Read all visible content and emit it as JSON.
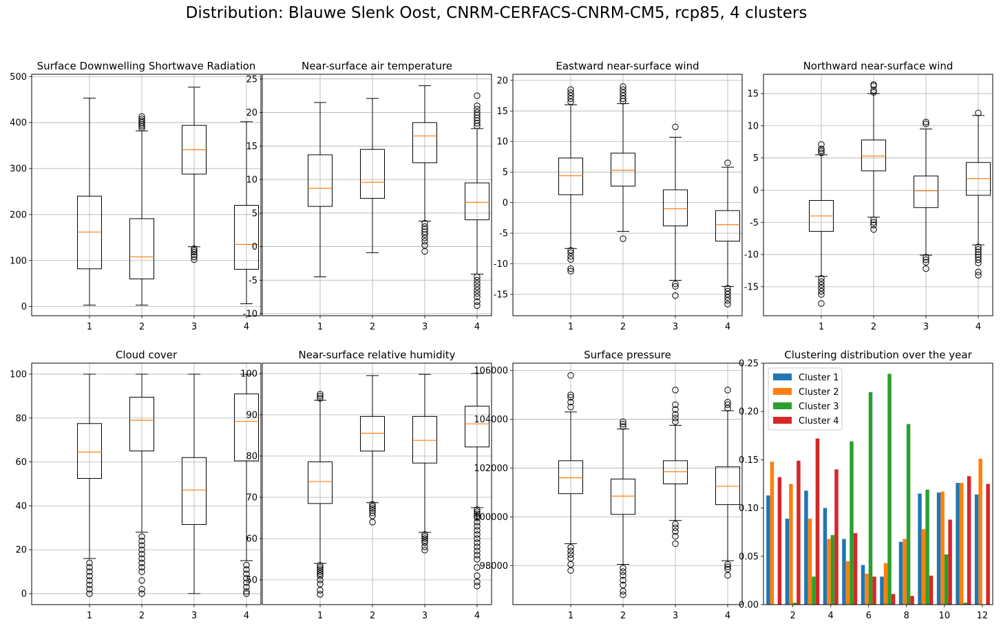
{
  "suptitle": "Distribution: Blauwe Slenk Oost, CNRM-CERFACS-CNRM-CM5, rcp85, 4 clusters",
  "colors": {
    "median": "#ff7f0e",
    "grid": "#b0b0b0",
    "cluster1": "#1f77b4",
    "cluster2": "#ff7f0e",
    "cluster3": "#2ca02c",
    "cluster4": "#d62728"
  },
  "chart_data": [
    {
      "type": "box",
      "title": "Surface Downwelling Shortwave Radiation",
      "categories": [
        "1",
        "2",
        "3",
        "4"
      ],
      "ylim": [
        -20,
        505
      ],
      "yticks": [
        0,
        100,
        200,
        300,
        400,
        500
      ],
      "grid": true,
      "boxes": [
        {
          "whislo": 3,
          "q1": 82,
          "med": 162,
          "q3": 240,
          "whishi": 453,
          "fliers": []
        },
        {
          "whislo": 3,
          "q1": 60,
          "med": 108,
          "q3": 191,
          "whishi": 382,
          "fliers": [
            388,
            392,
            396,
            400,
            404,
            408,
            413
          ]
        },
        {
          "whislo": 130,
          "q1": 288,
          "med": 341,
          "q3": 394,
          "whishi": 477,
          "fliers": [
            102,
            108,
            113,
            118,
            122,
            126
          ]
        },
        {
          "whislo": 6,
          "q1": 81,
          "med": 135,
          "q3": 220,
          "whishi": 402,
          "fliers": []
        }
      ]
    },
    {
      "type": "box",
      "title": "Near-surface air temperature",
      "categories": [
        "1",
        "2",
        "3",
        "4"
      ],
      "ylim": [
        -10.3,
        25.7
      ],
      "yticks": [
        -10,
        -5,
        0,
        5,
        10,
        15,
        20,
        25
      ],
      "grid": true,
      "boxes": [
        {
          "whislo": -4.5,
          "q1": 6.0,
          "med": 8.7,
          "q3": 13.7,
          "whishi": 21.5,
          "fliers": []
        },
        {
          "whislo": -0.9,
          "q1": 7.2,
          "med": 9.6,
          "q3": 14.5,
          "whishi": 22.1,
          "fliers": []
        },
        {
          "whislo": 3.8,
          "q1": 12.5,
          "med": 16.5,
          "q3": 18.5,
          "whishi": 24.0,
          "fliers": [
            3.5,
            3.0,
            2.6,
            2.2,
            1.8,
            1.3,
            0.8,
            0.2,
            -0.7
          ]
        },
        {
          "whislo": -4.1,
          "q1": 4.0,
          "med": 6.6,
          "q3": 9.5,
          "whishi": 17.6,
          "fliers": [
            18.0,
            18.4,
            18.8,
            19.2,
            19.6,
            20.0,
            20.5,
            21.0,
            22.5,
            -4.5,
            -5.0,
            -5.5,
            -6.0,
            -6.5,
            -7.0,
            -7.5,
            -8.2,
            -8.8
          ]
        }
      ]
    },
    {
      "type": "box",
      "title": "Eastward near-surface wind",
      "categories": [
        "1",
        "2",
        "3",
        "4"
      ],
      "ylim": [
        -18.5,
        21.0
      ],
      "yticks": [
        -15,
        -10,
        -5,
        0,
        5,
        10,
        15,
        20
      ],
      "grid": true,
      "boxes": [
        {
          "whislo": -7.5,
          "q1": 1.3,
          "med": 4.4,
          "q3": 7.3,
          "whishi": 16.0,
          "fliers": [
            16.5,
            17.0,
            17.5,
            18.0,
            18.5,
            -7.8,
            -8.2,
            -8.8,
            -9.3,
            -10.8,
            -11.2
          ]
        },
        {
          "whislo": -4.7,
          "q1": 2.7,
          "med": 5.3,
          "q3": 8.1,
          "whishi": 16.2,
          "fliers": [
            16.6,
            17.0,
            17.5,
            18.0,
            18.5,
            19.0,
            -5.9
          ]
        },
        {
          "whislo": -12.7,
          "q1": -3.8,
          "med": -1.0,
          "q3": 2.1,
          "whishi": 10.7,
          "fliers": [
            12.4,
            -13.3,
            -13.7,
            -15.2
          ]
        },
        {
          "whislo": -13.7,
          "q1": -6.3,
          "med": -3.6,
          "q3": -1.3,
          "whishi": 5.8,
          "fliers": [
            6.5,
            -14.0,
            -14.5,
            -15.0,
            -15.5,
            -16.0,
            -16.6
          ]
        }
      ]
    },
    {
      "type": "box",
      "title": "Northward near-surface wind",
      "categories": [
        "1",
        "2",
        "3",
        "4"
      ],
      "ylim": [
        -19.5,
        18.0
      ],
      "yticks": [
        -15,
        -10,
        -5,
        0,
        5,
        10,
        15
      ],
      "grid": true,
      "boxes": [
        {
          "whislo": -13.4,
          "q1": -6.4,
          "med": -4.0,
          "q3": -1.6,
          "whishi": 5.5,
          "fliers": [
            5.8,
            6.1,
            6.4,
            7.1,
            -13.7,
            -14.2,
            -14.7,
            -15.2,
            -15.7,
            -16.2,
            -17.6
          ]
        },
        {
          "whislo": -4.2,
          "q1": 3.0,
          "med": 5.3,
          "q3": 7.8,
          "whishi": 15.0,
          "fliers": [
            15.2,
            15.5,
            16.2,
            16.4,
            -4.6,
            -5.0,
            -5.4,
            -6.1
          ]
        },
        {
          "whislo": -10.1,
          "q1": -2.7,
          "med": -0.1,
          "q3": 2.2,
          "whishi": 9.5,
          "fliers": [
            10.3,
            10.6,
            -10.4,
            -10.8,
            -11.2,
            -12.2
          ]
        },
        {
          "whislo": -8.5,
          "q1": -0.8,
          "med": 1.8,
          "q3": 4.3,
          "whishi": 11.6,
          "fliers": [
            12.0,
            -8.8,
            -9.2,
            -9.6,
            -10.0,
            -10.4,
            -10.8,
            -11.3,
            -12.7,
            -13.2
          ]
        }
      ]
    },
    {
      "type": "box",
      "title": "Cloud cover",
      "categories": [
        "1",
        "2",
        "3",
        "4"
      ],
      "ylim": [
        -5,
        105
      ],
      "yticks": [
        0,
        20,
        40,
        60,
        80,
        100
      ],
      "grid": true,
      "boxes": [
        {
          "whislo": 16,
          "q1": 52.5,
          "med": 64.5,
          "q3": 77.5,
          "whishi": 100,
          "fliers": [
            14,
            12,
            10,
            8,
            6,
            4,
            2,
            0
          ]
        },
        {
          "whislo": 28,
          "q1": 65,
          "med": 79,
          "q3": 89.5,
          "whishi": 100,
          "fliers": [
            26,
            24,
            22,
            20,
            18,
            16,
            14,
            12,
            10,
            6,
            2,
            0
          ]
        },
        {
          "whislo": 0,
          "q1": 31.5,
          "med": 47.2,
          "q3": 62,
          "whishi": 100,
          "fliers": []
        },
        {
          "whislo": 15,
          "q1": 60.5,
          "med": 78.5,
          "q3": 91,
          "whishi": 100,
          "fliers": [
            13,
            11,
            9,
            7,
            5,
            3,
            1,
            0
          ]
        }
      ]
    },
    {
      "type": "box",
      "title": "Near-surface relative humidity",
      "categories": [
        "1",
        "2",
        "3",
        "4"
      ],
      "ylim": [
        44,
        102.5
      ],
      "yticks": [
        50,
        60,
        70,
        80,
        90,
        100
      ],
      "grid": true,
      "boxes": [
        {
          "whislo": 54,
          "q1": 68.5,
          "med": 73.8,
          "q3": 78.6,
          "whishi": 93.5,
          "fliers": [
            94.0,
            94.5,
            95.0,
            53.5,
            53.0,
            52.5,
            52.0,
            51.5,
            51.0,
            50.0,
            49.0,
            47.5,
            46.5
          ]
        },
        {
          "whislo": 68.7,
          "q1": 81.2,
          "med": 85.5,
          "q3": 89.6,
          "whishi": 99.5,
          "fliers": [
            68.3,
            67.8,
            67.3,
            66.8,
            66.2,
            65.5,
            64.0
          ]
        },
        {
          "whislo": 61.5,
          "q1": 78.3,
          "med": 83.8,
          "q3": 89.6,
          "whishi": 99.8,
          "fliers": [
            61.0,
            60.5,
            60.0,
            59.5,
            59.0,
            58.0,
            57.2
          ]
        },
        {
          "whislo": 67.5,
          "q1": 82.2,
          "med": 87.8,
          "q3": 92.1,
          "whishi": 100,
          "fliers": [
            67.0,
            66.5,
            66.0,
            65.5,
            65.0,
            64.0,
            63.0,
            62.0,
            61.0,
            60.0,
            59.0,
            58.0,
            57.0,
            56.0,
            55.0,
            53.0,
            51.0,
            49.5,
            48.5
          ]
        }
      ]
    },
    {
      "type": "box",
      "title": "Surface pressure",
      "categories": [
        "1",
        "2",
        "3",
        "4"
      ],
      "ylim": [
        96400,
        106300
      ],
      "yticks": [
        98000,
        100000,
        102000,
        104000,
        106000
      ],
      "grid": true,
      "boxes": [
        {
          "whislo": 98900,
          "q1": 100950,
          "med": 101600,
          "q3": 102300,
          "whishi": 104300,
          "fliers": [
            104500,
            104700,
            104900,
            105000,
            105800,
            98750,
            98600,
            98450,
            98300,
            98050,
            97800
          ]
        },
        {
          "whislo": 98050,
          "q1": 100100,
          "med": 100850,
          "q3": 101550,
          "whishi": 103600,
          "fliers": [
            103700,
            103800,
            103900,
            97900,
            97750,
            97600,
            97400,
            97200,
            96950,
            96800
          ]
        },
        {
          "whislo": 99850,
          "q1": 101350,
          "med": 101850,
          "q3": 102300,
          "whishi": 103750,
          "fliers": [
            103900,
            104050,
            104200,
            104400,
            104600,
            105200,
            99700,
            99550,
            99400,
            99200,
            98900
          ]
        },
        {
          "whislo": 98200,
          "q1": 100500,
          "med": 101250,
          "q3": 102050,
          "whishi": 104350,
          "fliers": [
            104450,
            104600,
            104700,
            105200,
            98050,
            97950,
            97850,
            97600
          ]
        }
      ]
    },
    {
      "type": "bar",
      "title": "Clustering distribution over the year",
      "categories": [
        1,
        2,
        3,
        4,
        5,
        6,
        7,
        8,
        9,
        10,
        11,
        12
      ],
      "xticks": [
        2,
        4,
        6,
        8,
        10,
        12
      ],
      "ylim": [
        0,
        0.25
      ],
      "yticks": [
        "0.00",
        "0.05",
        "0.10",
        "0.15",
        "0.20",
        "0.25"
      ],
      "legend_position": "upper-left",
      "series": [
        {
          "name": "Cluster 1",
          "values": [
            0.113,
            0.089,
            0.118,
            0.1,
            0.068,
            0.041,
            0.029,
            0.065,
            0.115,
            0.116,
            0.126,
            0.114
          ]
        },
        {
          "name": "Cluster 2",
          "values": [
            0.148,
            0.125,
            0.089,
            0.068,
            0.045,
            0.032,
            0.043,
            0.068,
            0.078,
            0.117,
            0.126,
            0.151
          ]
        },
        {
          "name": "Cluster 3",
          "values": [
            0.0,
            0.002,
            0.029,
            0.072,
            0.169,
            0.22,
            0.239,
            0.187,
            0.119,
            0.052,
            0.002,
            0.0
          ]
        },
        {
          "name": "Cluster 4",
          "values": [
            0.132,
            0.149,
            0.172,
            0.14,
            0.074,
            0.029,
            0.011,
            0.009,
            0.03,
            0.088,
            0.133,
            0.125
          ]
        }
      ]
    }
  ]
}
